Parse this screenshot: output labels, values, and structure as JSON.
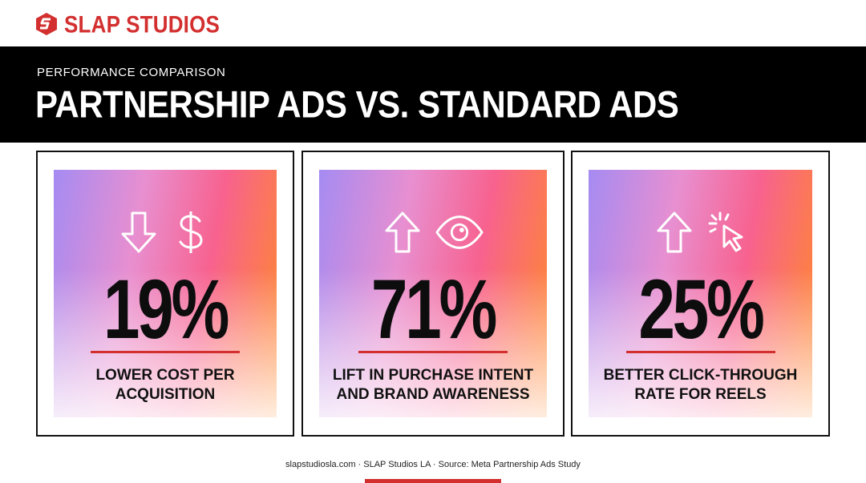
{
  "brand": {
    "logo_text": "SLAP STUDIOS",
    "logo_icon": "slap-s-mark-icon",
    "color": "#d32f2f"
  },
  "header": {
    "eyebrow": "PERFORMANCE COMPARISON",
    "title": "PARTNERSHIP ADS VS. STANDARD ADS"
  },
  "cards": [
    {
      "icons": [
        "arrow-down-icon",
        "dollar-icon"
      ],
      "value": "19%",
      "line1": "LOWER COST PER",
      "line2": "ACQUISITION"
    },
    {
      "icons": [
        "arrow-up-icon",
        "eye-icon"
      ],
      "value": "71%",
      "line1": "LIFT IN PURCHASE INTENT",
      "line2": "AND BRAND AWARENESS"
    },
    {
      "icons": [
        "arrow-up-icon",
        "cursor-click-icon"
      ],
      "value": "25%",
      "line1": "BETTER CLICK-THROUGH",
      "line2": "RATE FOR REELS"
    }
  ],
  "footer": {
    "text": "slapstudiosla.com · SLAP Studios LA · Source: Meta Partnership Ads Study"
  },
  "colors": {
    "accent": "#d32f2f",
    "banner": "#000000",
    "gradient": [
      "#a58bf2",
      "#e88fd0",
      "#f7628f",
      "#ff8a2a"
    ]
  }
}
